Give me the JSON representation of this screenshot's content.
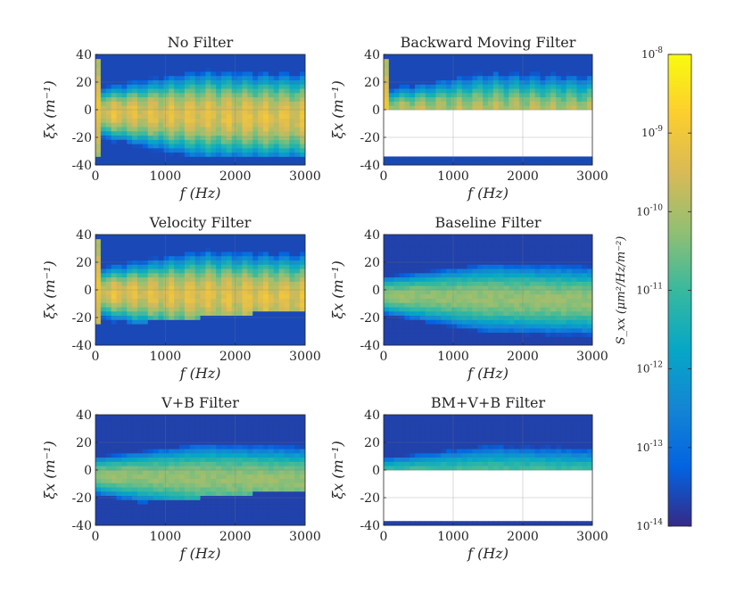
{
  "figure": {
    "colorbar": {
      "label": "S_xx (μm²/Hz/m⁻²)",
      "label_text": "S_xx (μm²/Hz/m⁻²)",
      "ticks": [
        {
          "base": "10",
          "exp": "-8"
        },
        {
          "base": "10",
          "exp": "-9"
        },
        {
          "base": "10",
          "exp": "-10"
        },
        {
          "base": "10",
          "exp": "-11"
        },
        {
          "base": "10",
          "exp": "-12"
        },
        {
          "base": "10",
          "exp": "-13"
        },
        {
          "base": "10",
          "exp": "-14"
        }
      ],
      "colormap": "parula",
      "colors": [
        "#352a87",
        "#0363e1",
        "#1485d4",
        "#06a7c6",
        "#38b99e",
        "#92bf73",
        "#d9ba56",
        "#fcce2e",
        "#f9fb0e"
      ]
    }
  },
  "chart_data": [
    {
      "type": "heatmap",
      "title": "No Filter",
      "xlabel": "f (Hz)",
      "ylabel": "ξx (m⁻¹)",
      "xlim": [
        0,
        3000
      ],
      "ylim": [
        -40,
        40
      ],
      "xticks": [
        "0",
        "1000",
        "2000",
        "3000"
      ],
      "yticks": [
        "40",
        "20",
        "0",
        "-20",
        "-40"
      ],
      "color_scale": "log",
      "clim": [
        1e-14,
        1e-08
      ],
      "grid": true,
      "filter": {
        "upper_cut": null,
        "lower_cut": null
      },
      "shape": {
        "ymin": -34,
        "ymax": 38,
        "spread": 30,
        "center": -2,
        "peak": -9.4,
        "floor": -13.6,
        "low_peak": -9.0,
        "low_width": 80,
        "low_cut": 100,
        "harmonics": true
      }
    },
    {
      "type": "heatmap",
      "title": "Backward Moving Filter",
      "xlabel": "f (Hz)",
      "ylabel": "ξx (m⁻¹)",
      "xlim": [
        0,
        3000
      ],
      "ylim": [
        -40,
        40
      ],
      "xticks": [
        "0",
        "1000",
        "2000",
        "3000"
      ],
      "yticks": [
        "40",
        "20",
        "0",
        "-20",
        "-40"
      ],
      "color_scale": "log",
      "clim": [
        1e-14,
        1e-08
      ],
      "grid": true,
      "filter": {
        "upper_cut": null,
        "lower_cut": 0
      },
      "shape": {
        "ymin": -34,
        "ymax": 38,
        "spread": 30,
        "center": -2,
        "peak": -9.8,
        "floor": -13.6,
        "low_peak": -9.0,
        "low_width": 80,
        "low_cut": 100,
        "harmonics": true
      }
    },
    {
      "type": "heatmap",
      "title": "Velocity Filter",
      "xlabel": "f (Hz)",
      "ylabel": "ξx (m⁻¹)",
      "xlim": [
        0,
        3000
      ],
      "ylim": [
        -40,
        40
      ],
      "xticks": [
        "0",
        "1000",
        "2000",
        "3000"
      ],
      "yticks": [
        "40",
        "20",
        "0",
        "-20",
        "-40"
      ],
      "color_scale": "log",
      "clim": [
        1e-14,
        1e-08
      ],
      "grid": true,
      "filter": {
        "upper_cut": null,
        "lower_cut": "velocity"
      },
      "shape": {
        "ymin": -30,
        "ymax": 38,
        "spread": 30,
        "center": -2,
        "peak": -9.4,
        "floor": -13.6,
        "low_peak": -9.0,
        "low_width": 80,
        "low_cut": 100,
        "harmonics": true
      }
    },
    {
      "type": "heatmap",
      "title": "Baseline Filter",
      "xlabel": "f (Hz)",
      "ylabel": "ξx (m⁻¹)",
      "xlim": [
        0,
        3000
      ],
      "ylim": [
        -40,
        40
      ],
      "xticks": [
        "0",
        "1000",
        "2000",
        "3000"
      ],
      "yticks": [
        "40",
        "20",
        "0",
        "-20",
        "-40"
      ],
      "color_scale": "log",
      "clim": [
        1e-14,
        1e-08
      ],
      "grid": true,
      "filter": {
        "upper_cut": null,
        "lower_cut": null
      },
      "shape": {
        "ymin": -36,
        "ymax": 38,
        "spread": 26,
        "center": -4,
        "peak": -10.2,
        "floor": -13.7,
        "low_peak": -10.2,
        "low_width": 0,
        "low_cut": 0,
        "harmonics": false
      }
    },
    {
      "type": "heatmap",
      "title": "V+B Filter",
      "xlabel": "f (Hz)",
      "ylabel": "ξx (m⁻¹)",
      "xlim": [
        0,
        3000
      ],
      "ylim": [
        -40,
        40
      ],
      "xticks": [
        "0",
        "1000",
        "2000",
        "3000"
      ],
      "yticks": [
        "40",
        "20",
        "0",
        "-20",
        "-40"
      ],
      "color_scale": "log",
      "clim": [
        1e-14,
        1e-08
      ],
      "grid": true,
      "filter": {
        "upper_cut": null,
        "lower_cut": "velocity"
      },
      "shape": {
        "ymin": -30,
        "ymax": 38,
        "spread": 26,
        "center": -4,
        "peak": -10.2,
        "floor": -13.7,
        "low_peak": -10.2,
        "low_width": 0,
        "low_cut": 0,
        "harmonics": false
      }
    },
    {
      "type": "heatmap",
      "title": "BM+V+B Filter",
      "xlabel": "f (Hz)",
      "ylabel": "ξx (m⁻¹)",
      "xlim": [
        0,
        3000
      ],
      "ylim": [
        -40,
        40
      ],
      "xticks": [
        "0",
        "1000",
        "2000",
        "3000"
      ],
      "yticks": [
        "40",
        "20",
        "0",
        "-20",
        "-40"
      ],
      "color_scale": "log",
      "clim": [
        1e-14,
        1e-08
      ],
      "grid": true,
      "filter": {
        "upper_cut": null,
        "lower_cut": 0
      },
      "shape": {
        "ymin": -36,
        "ymax": 38,
        "spread": 26,
        "center": -4,
        "peak": -10.6,
        "floor": -13.7,
        "low_peak": -10.6,
        "low_width": 0,
        "low_cut": 0,
        "harmonics": false
      }
    }
  ]
}
